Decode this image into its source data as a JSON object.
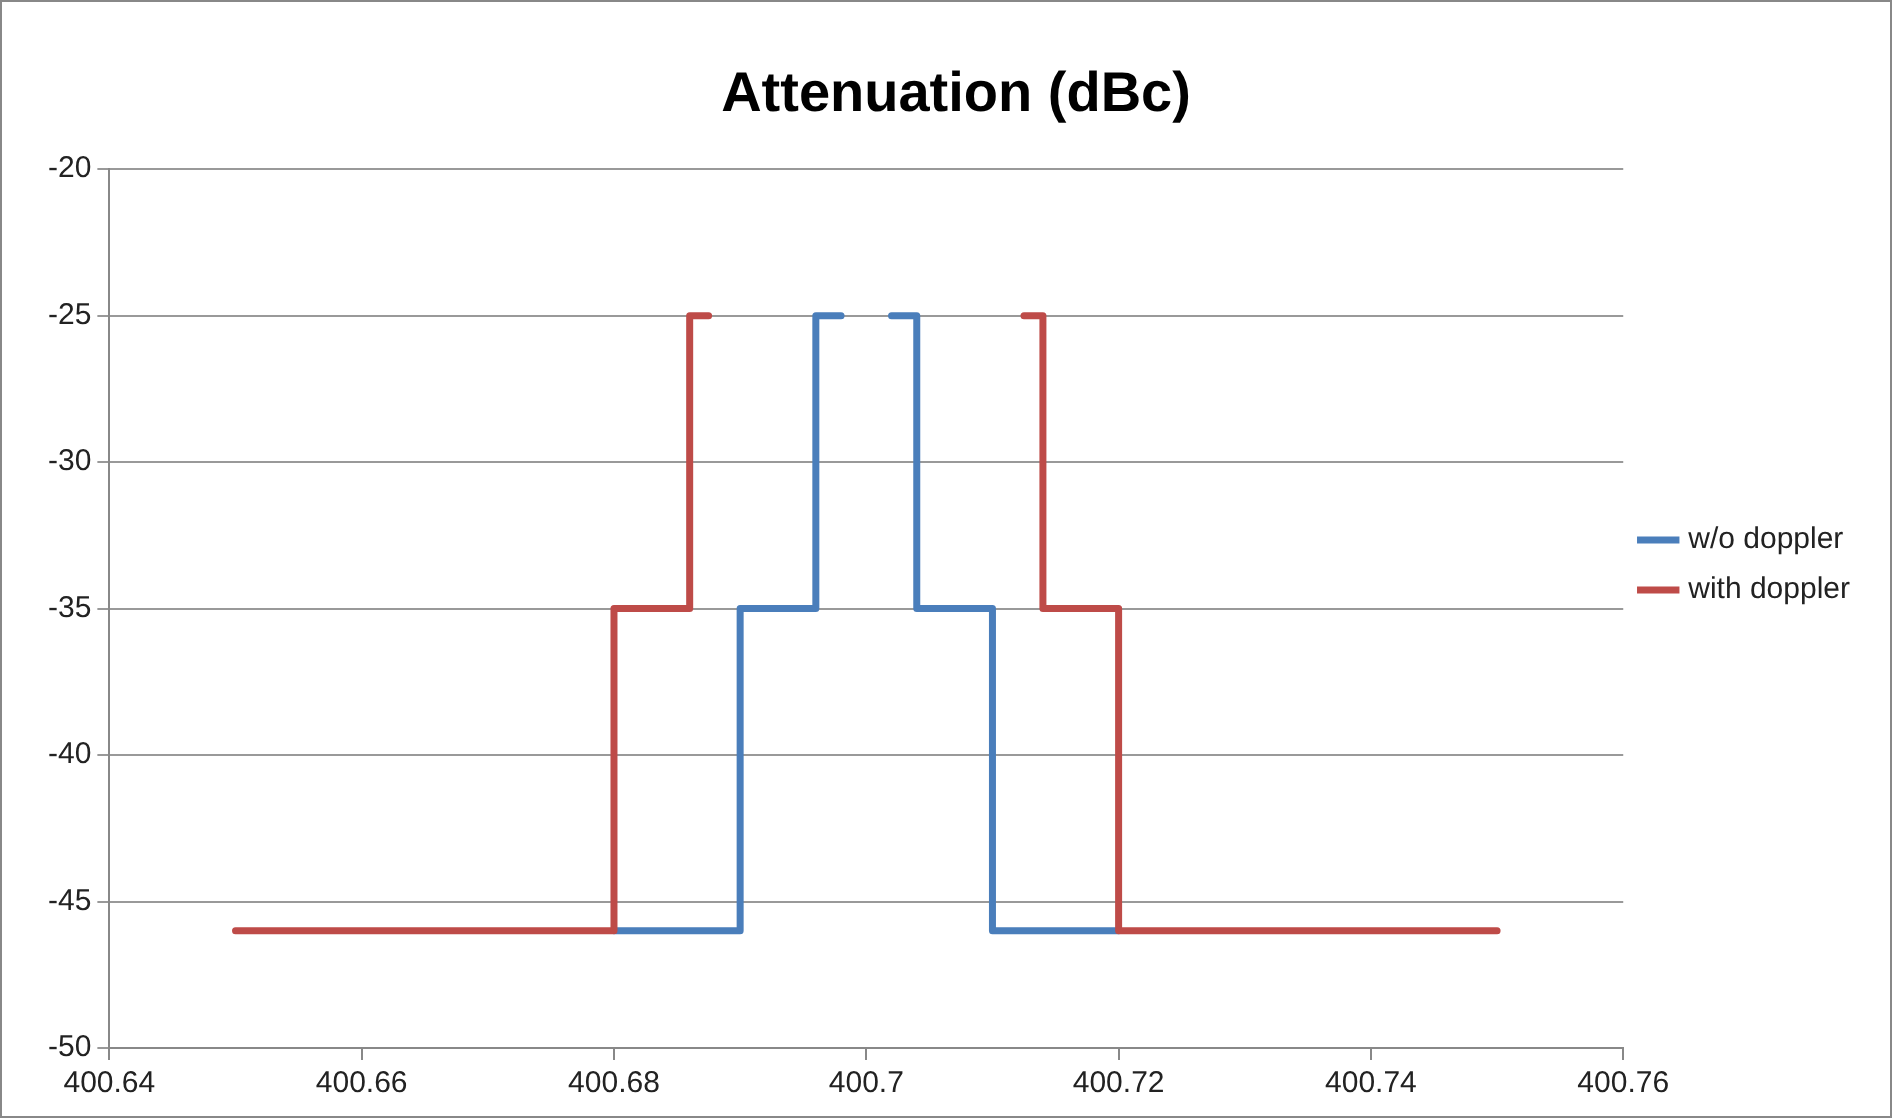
{
  "chart_data": {
    "type": "step",
    "title": "Attenuation (dBc)",
    "series": [
      {
        "name": "w/o doppler",
        "color": "#4a7ebb",
        "x": [
          400.68,
          400.69,
          400.696,
          400.698,
          400.7,
          400.702,
          400.704,
          400.71,
          400.72
        ],
        "values": [
          -46,
          -35,
          -25,
          -25,
          null,
          -25,
          -35,
          -46,
          -46
        ]
      },
      {
        "name": "with doppler",
        "color": "#be4b48",
        "x": [
          400.65,
          400.68,
          400.686,
          400.6875,
          400.7,
          400.7125,
          400.714,
          400.72,
          400.75
        ],
        "values": [
          -46,
          -35,
          -25,
          -25,
          null,
          -25,
          -35,
          -46,
          -46
        ]
      }
    ],
    "xlim": [
      400.64,
      400.76
    ],
    "xticks": [
      400.64,
      400.66,
      400.68,
      400.7,
      400.72,
      400.74,
      400.76
    ],
    "ylim": [
      -50,
      -20
    ],
    "yticks": [
      -50,
      -45,
      -40,
      -35,
      -30,
      -25,
      -20
    ],
    "grid": "y",
    "legend": "right",
    "marker": "none",
    "line_style": "solid"
  }
}
